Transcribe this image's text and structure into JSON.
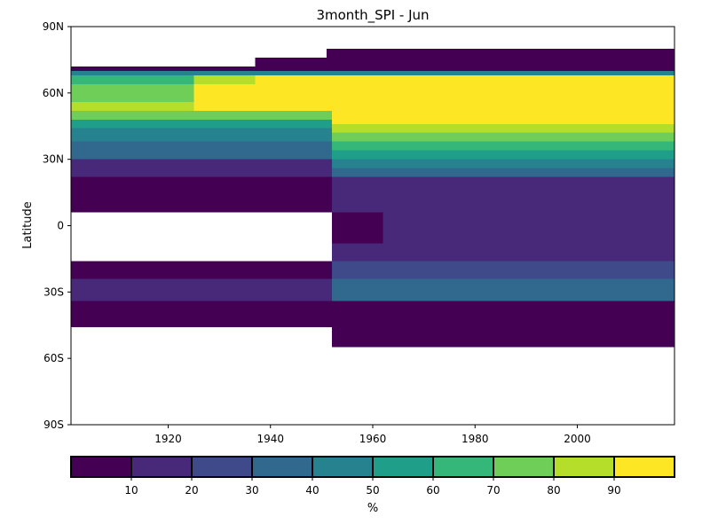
{
  "chart_data": {
    "type": "heatmap",
    "title": "3month_SPI - Jun",
    "ylabel": "Latitude",
    "xlabel": "",
    "xlim": [
      1901,
      2019
    ],
    "ylim": [
      -90,
      90
    ],
    "x_ticks": [
      1920,
      1940,
      1960,
      1980,
      2000
    ],
    "y_ticks": [
      {
        "value": 90,
        "label": "90N"
      },
      {
        "value": 60,
        "label": "60N"
      },
      {
        "value": 30,
        "label": "30N"
      },
      {
        "value": 0,
        "label": "0"
      },
      {
        "value": -30,
        "label": "30S"
      },
      {
        "value": -60,
        "label": "60S"
      },
      {
        "value": -90,
        "label": "90S"
      }
    ],
    "colorbar": {
      "label": "%",
      "range": [
        0,
        100
      ],
      "ticks": [
        10,
        20,
        30,
        40,
        50,
        60,
        70,
        80,
        90
      ],
      "colors": [
        "#440154",
        "#482878",
        "#3e4a89",
        "#31688e",
        "#26828e",
        "#1f9e89",
        "#35b779",
        "#6ece58",
        "#b5de2b",
        "#fde725"
      ]
    },
    "regions": [
      {
        "x": [
          1951,
          2019
        ],
        "y": [
          76,
          80
        ],
        "value": 5
      },
      {
        "x": [
          1951,
          2019
        ],
        "y": [
          72,
          76
        ],
        "value": 5
      },
      {
        "x": [
          1937,
          1951
        ],
        "y": [
          72,
          76
        ],
        "value": 5
      },
      {
        "x": [
          1901,
          2019
        ],
        "y": [
          70,
          72
        ],
        "value": 5
      },
      {
        "x": [
          1901,
          2019
        ],
        "y": [
          68,
          70
        ],
        "value": 45
      },
      {
        "x": [
          1901,
          1925
        ],
        "y": [
          64,
          68
        ],
        "value": 65
      },
      {
        "x": [
          1925,
          1937
        ],
        "y": [
          64,
          68
        ],
        "value": 85
      },
      {
        "x": [
          1937,
          2019
        ],
        "y": [
          64,
          68
        ],
        "value": 95
      },
      {
        "x": [
          1901,
          1925
        ],
        "y": [
          56,
          64
        ],
        "value": 75
      },
      {
        "x": [
          1925,
          2019
        ],
        "y": [
          56,
          64
        ],
        "value": 95
      },
      {
        "x": [
          1901,
          1925
        ],
        "y": [
          52,
          56
        ],
        "value": 85
      },
      {
        "x": [
          1925,
          2019
        ],
        "y": [
          52,
          56
        ],
        "value": 95
      },
      {
        "x": [
          1901,
          1952
        ],
        "y": [
          48,
          52
        ],
        "value": 75
      },
      {
        "x": [
          1952,
          2019
        ],
        "y": [
          46,
          52
        ],
        "value": 95
      },
      {
        "x": [
          1901,
          1952
        ],
        "y": [
          44,
          48
        ],
        "value": 55
      },
      {
        "x": [
          1952,
          2019
        ],
        "y": [
          42,
          46
        ],
        "value": 85
      },
      {
        "x": [
          1901,
          1952
        ],
        "y": [
          38,
          44
        ],
        "value": 45
      },
      {
        "x": [
          1952,
          2019
        ],
        "y": [
          38,
          42
        ],
        "value": 75
      },
      {
        "x": [
          1901,
          1952
        ],
        "y": [
          30,
          38
        ],
        "value": 35
      },
      {
        "x": [
          1952,
          2019
        ],
        "y": [
          34,
          38
        ],
        "value": 65
      },
      {
        "x": [
          1952,
          2019
        ],
        "y": [
          30,
          34
        ],
        "value": 55
      },
      {
        "x": [
          1901,
          1952
        ],
        "y": [
          22,
          30
        ],
        "value": 15
      },
      {
        "x": [
          1952,
          2019
        ],
        "y": [
          26,
          30
        ],
        "value": 45
      },
      {
        "x": [
          1952,
          2019
        ],
        "y": [
          22,
          26
        ],
        "value": 35
      },
      {
        "x": [
          1901,
          1952
        ],
        "y": [
          6,
          22
        ],
        "value": 5
      },
      {
        "x": [
          1952,
          2019
        ],
        "y": [
          6,
          22
        ],
        "value": 15
      },
      {
        "x": [
          1952,
          1962
        ],
        "y": [
          -8,
          6
        ],
        "value": 5
      },
      {
        "x": [
          1962,
          2019
        ],
        "y": [
          -8,
          6
        ],
        "value": 15
      },
      {
        "x": [
          1901,
          1952
        ],
        "y": [
          -24,
          -16
        ],
        "value": 5
      },
      {
        "x": [
          1952,
          2019
        ],
        "y": [
          -16,
          -8
        ],
        "value": 15
      },
      {
        "x": [
          1952,
          2019
        ],
        "y": [
          -24,
          -16
        ],
        "value": 25
      },
      {
        "x": [
          1901,
          1952
        ],
        "y": [
          -34,
          -24
        ],
        "value": 15
      },
      {
        "x": [
          1952,
          2019
        ],
        "y": [
          -34,
          -24
        ],
        "value": 35
      },
      {
        "x": [
          1901,
          2019
        ],
        "y": [
          -46,
          -34
        ],
        "value": 5
      },
      {
        "x": [
          1952,
          2019
        ],
        "y": [
          -55,
          -46
        ],
        "value": 5
      }
    ]
  }
}
